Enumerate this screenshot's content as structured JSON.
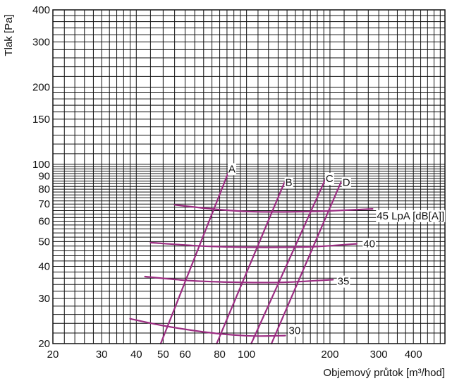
{
  "chart_data": {
    "type": "line",
    "title": "",
    "xlabel": "Objemový průtok [m³/hod]",
    "ylabel": "Tlak [Pa]",
    "xscale": "log",
    "yscale": "log",
    "xlim": [
      20,
      520
    ],
    "ylim": [
      20,
      400
    ],
    "grid": true,
    "legend": "none",
    "curve_color": "#9b2d82",
    "x_ticks": [
      {
        "value": 20,
        "label": "20"
      },
      {
        "value": 30,
        "label": "30"
      },
      {
        "value": 40,
        "label": "40"
      },
      {
        "value": 50,
        "label": "50"
      },
      {
        "value": 60,
        "label": "60"
      },
      {
        "value": 80,
        "label": "80"
      },
      {
        "value": 100,
        "label": "100"
      },
      {
        "value": 200,
        "label": "200"
      },
      {
        "value": 300,
        "label": "300"
      },
      {
        "value": 400,
        "label": "400"
      }
    ],
    "y_ticks": [
      {
        "value": 20,
        "label": "20"
      },
      {
        "value": 30,
        "label": "30"
      },
      {
        "value": 40,
        "label": "40"
      },
      {
        "value": 50,
        "label": "50"
      },
      {
        "value": 60,
        "label": "60"
      },
      {
        "value": 70,
        "label": "70"
      },
      {
        "value": 80,
        "label": "80"
      },
      {
        "value": 90,
        "label": "90"
      },
      {
        "value": 100,
        "label": "100"
      },
      {
        "value": 150,
        "label": "150"
      },
      {
        "value": 200,
        "label": "200"
      },
      {
        "value": 300,
        "label": "300"
      },
      {
        "value": 400,
        "label": "400"
      }
    ],
    "series": [
      {
        "name": "A",
        "kind": "system",
        "points": [
          [
            49,
            20
          ],
          [
            86,
            93
          ]
        ]
      },
      {
        "name": "B",
        "kind": "system",
        "points": [
          [
            78,
            20
          ],
          [
            137,
            85
          ]
        ]
      },
      {
        "name": "C",
        "kind": "system",
        "points": [
          [
            104,
            20
          ],
          [
            192,
            87
          ]
        ]
      },
      {
        "name": "D",
        "kind": "system",
        "points": [
          [
            123,
            20
          ],
          [
            219,
            85
          ]
        ]
      },
      {
        "name": "45 LpA [dB[A]]",
        "kind": "noise",
        "points": [
          [
            55,
            69.5
          ],
          [
            75,
            67
          ],
          [
            100,
            65.5
          ],
          [
            130,
            65.2
          ],
          [
            170,
            65.5
          ],
          [
            210,
            66
          ],
          [
            285,
            67
          ]
        ]
      },
      {
        "name": "40",
        "kind": "noise",
        "points": [
          [
            45,
            49.5
          ],
          [
            70,
            48
          ],
          [
            100,
            47.5
          ],
          [
            140,
            47.5
          ],
          [
            180,
            47.8
          ],
          [
            250,
            49
          ]
        ]
      },
      {
        "name": "35",
        "kind": "noise",
        "points": [
          [
            43,
            36.5
          ],
          [
            60,
            35.3
          ],
          [
            80,
            34.8
          ],
          [
            110,
            34.6
          ],
          [
            140,
            34.7
          ],
          [
            205,
            35.5
          ]
        ]
      },
      {
        "name": "30",
        "kind": "noise",
        "points": [
          [
            38,
            25
          ],
          [
            50,
            23.5
          ],
          [
            70,
            22.2
          ],
          [
            90,
            21.6
          ],
          [
            110,
            21.4
          ],
          [
            138,
            21.5
          ]
        ]
      }
    ],
    "series_labels": [
      {
        "text": "A",
        "x": 86,
        "y": 96
      },
      {
        "text": "B",
        "x": 138,
        "y": 85
      },
      {
        "text": "C",
        "x": 193,
        "y": 88
      },
      {
        "text": "D",
        "x": 222,
        "y": 85
      },
      {
        "text": "45 LpA [dB[A]]",
        "x": 295,
        "y": 63
      },
      {
        "text": "40",
        "x": 264,
        "y": 49
      },
      {
        "text": "35",
        "x": 213,
        "y": 35
      },
      {
        "text": "30",
        "x": 142,
        "y": 22.5
      }
    ]
  }
}
